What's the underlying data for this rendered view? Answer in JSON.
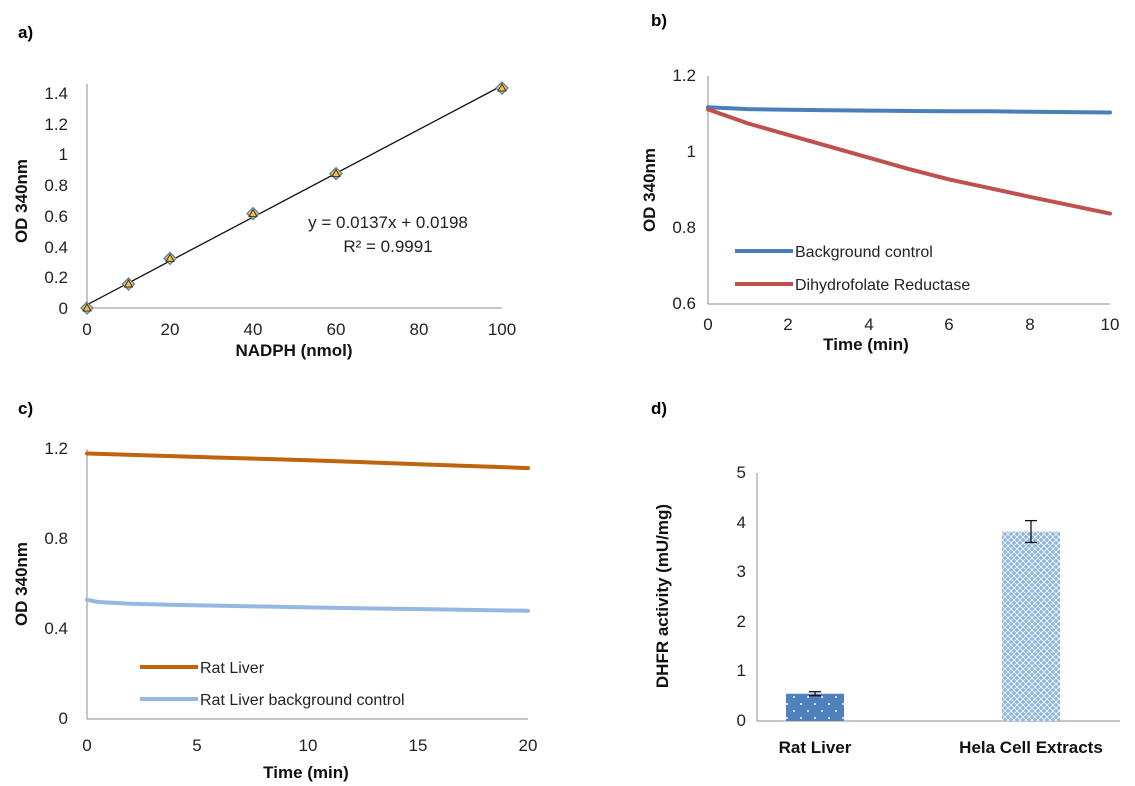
{
  "colors": {
    "blue_line": "#4a7ebb",
    "red_line": "#c0504d",
    "orange_line": "#c0630f",
    "lightblue_line": "#95b8e3",
    "marker_fill": "#f5c242",
    "marker_edge": "#4a7ebb",
    "bar_rat": "#4f81bd",
    "bar_hela": "#8db3e2"
  },
  "chart_data": [
    {
      "panel_label": "a)",
      "type": "scatter",
      "xlabel": "NADPH (nmol)",
      "ylabel": "OD 340nm",
      "xlim": [
        0,
        100
      ],
      "ylim": [
        0,
        1.4
      ],
      "x_ticks": [
        "0",
        "20",
        "40",
        "60",
        "80",
        "100"
      ],
      "y_ticks": [
        "0",
        "0.2",
        "0.4",
        "0.6",
        "0.8",
        "1",
        "1.2",
        "1.4"
      ],
      "points": {
        "x": [
          0,
          10,
          20,
          40,
          60,
          100
        ],
        "y": [
          0,
          0.15,
          0.31,
          0.59,
          0.84,
          1.375
        ]
      },
      "trendline": {
        "slope": 0.0137,
        "intercept": 0.0198
      },
      "annotations": [
        "y = 0.0137x + 0.0198",
        "R² = 0.9991"
      ]
    },
    {
      "panel_label": "b)",
      "type": "line",
      "xlabel": "Time (min)",
      "ylabel": "OD 340nm",
      "xlim": [
        0,
        10
      ],
      "ylim": [
        0.6,
        1.2
      ],
      "x_ticks": [
        "0",
        "2",
        "4",
        "6",
        "8",
        "10"
      ],
      "y_ticks": [
        "0.6",
        "0.8",
        "1",
        "1.2"
      ],
      "legend": "lower-left",
      "series": [
        {
          "name": "Background control",
          "x": [
            0,
            1,
            2,
            3,
            4,
            5,
            6,
            7,
            8,
            9,
            10
          ],
          "y": [
            1.118,
            1.113,
            1.111,
            1.11,
            1.109,
            1.108,
            1.107,
            1.107,
            1.106,
            1.105,
            1.104
          ]
        },
        {
          "name": "Dihydrofolate Reductase",
          "x": [
            0,
            1,
            2,
            3,
            4,
            5,
            6,
            7,
            8,
            9,
            10
          ],
          "y": [
            1.112,
            1.075,
            1.045,
            1.015,
            0.985,
            0.955,
            0.928,
            0.905,
            0.882,
            0.86,
            0.838
          ]
        }
      ]
    },
    {
      "panel_label": "c)",
      "type": "line",
      "xlabel": "Time (min)",
      "ylabel": "OD 340nm",
      "xlim": [
        0,
        20
      ],
      "ylim": [
        0,
        1.2
      ],
      "x_ticks": [
        "0",
        "5",
        "10",
        "15",
        "20"
      ],
      "y_ticks": [
        "0",
        "0.4",
        "0.8",
        "1.2"
      ],
      "legend": "lower-left",
      "series": [
        {
          "name": "Rat Liver",
          "x": [
            0,
            2,
            4,
            6,
            8,
            10,
            12,
            14,
            16,
            18,
            20
          ],
          "y": [
            1.18,
            1.174,
            1.168,
            1.162,
            1.156,
            1.15,
            1.143,
            1.136,
            1.129,
            1.122,
            1.115
          ]
        },
        {
          "name": "Rat Liver background control",
          "x": [
            0,
            0.5,
            2,
            4,
            6,
            8,
            10,
            12,
            14,
            16,
            18,
            20
          ],
          "y": [
            0.53,
            0.52,
            0.512,
            0.507,
            0.503,
            0.5,
            0.496,
            0.493,
            0.49,
            0.487,
            0.484,
            0.481
          ]
        }
      ]
    },
    {
      "panel_label": "d)",
      "type": "bar",
      "xlabel": "",
      "ylabel": "DHFR activity (mU/mg)",
      "ylim": [
        0,
        5
      ],
      "y_ticks": [
        "0",
        "1",
        "2",
        "3",
        "4",
        "5"
      ],
      "categories": [
        "Rat Liver",
        "Hela Cell Extracts"
      ],
      "values": [
        0.55,
        3.82
      ],
      "errors": [
        0.04,
        0.22
      ]
    }
  ]
}
